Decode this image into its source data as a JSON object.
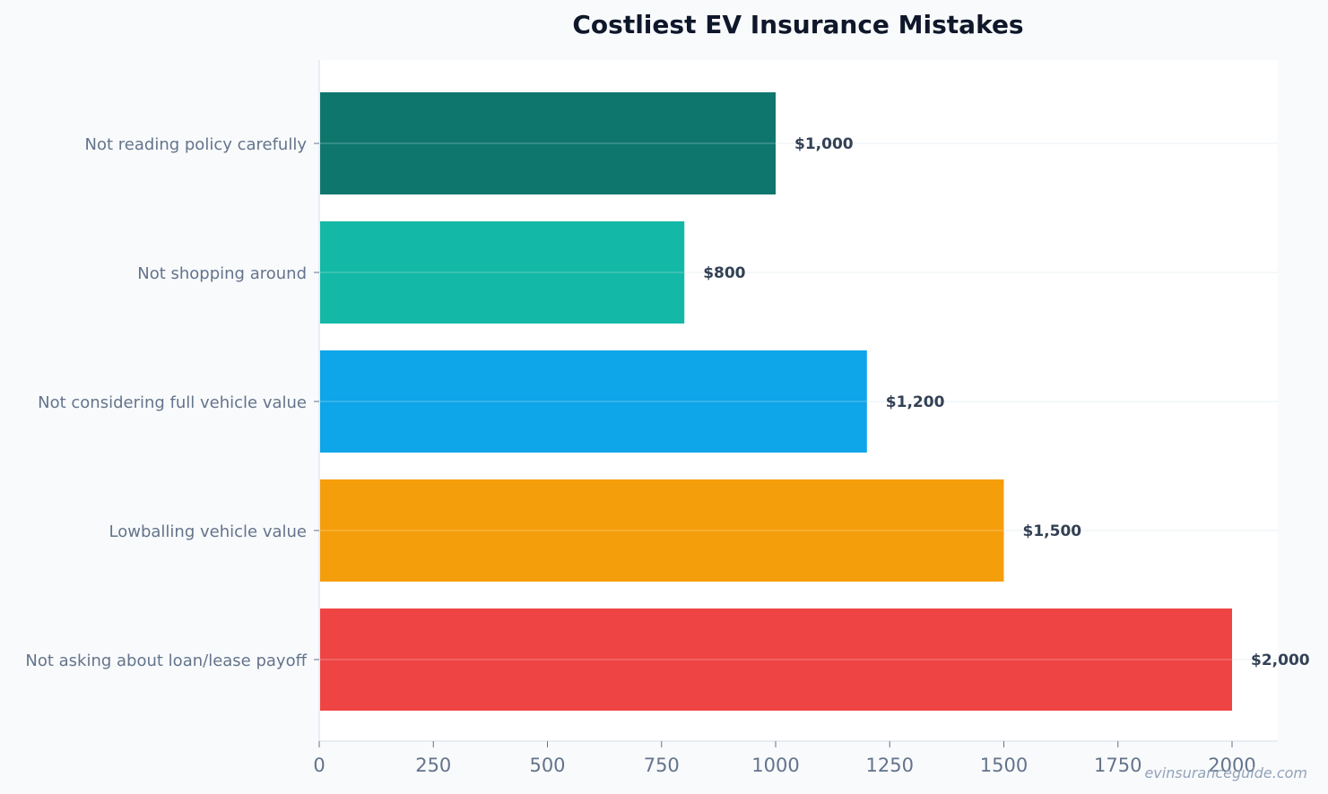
{
  "chart_data": {
    "type": "bar",
    "orientation": "horizontal",
    "title": "Costliest EV Insurance Mistakes",
    "categories": [
      "Not reading policy carefully",
      "Not shopping around",
      "Not considering full vehicle value",
      "Lowballing vehicle value",
      "Not asking about loan/lease payoff"
    ],
    "values": [
      1000,
      800,
      1200,
      1500,
      2000
    ],
    "data_labels": [
      "$1,000",
      "$800",
      "$1,200",
      "$1,500",
      "$2,000"
    ],
    "colors": [
      "#0f766e",
      "#14b8a6",
      "#0ea5e9",
      "#f59e0b",
      "#ef4444"
    ],
    "xlim": [
      0,
      2100
    ],
    "xticks": [
      0,
      250,
      500,
      750,
      1000,
      1250,
      1500,
      1750,
      2000
    ],
    "xtick_labels": [
      "0",
      "250",
      "500",
      "750",
      "1000",
      "1250",
      "1500",
      "1750",
      "2000"
    ],
    "xlabel": "",
    "ylabel": "",
    "grid": true,
    "legend": "none"
  },
  "watermark": "evinsuranceguide.com"
}
